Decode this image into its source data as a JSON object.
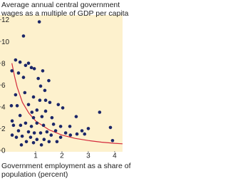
{
  "chart_data": {
    "type": "scatter",
    "title": "Average annual central government wages as a multiple of GDP per capita",
    "x_label": "Government employment as a share of population (percent)",
    "color": "#1b2668",
    "background": "#fdf1cd",
    "x": [
      1.14,
      0.54,
      0.24,
      0.41,
      0.62,
      0.73,
      0.84,
      0.95,
      0.1,
      0.35,
      1.27,
      0.54,
      1.1,
      1.5,
      1.19,
      1.35,
      0.24,
      0.92,
      1.16,
      1.38,
      1.54,
      1.86,
      2.03,
      0.08,
      0.3,
      0.73,
      1.05,
      0.86,
      1.38,
      1.24,
      0.92,
      0.41,
      1.62,
      3.43,
      2.54,
      0.11,
      0.62,
      1.05,
      1.3,
      1.68,
      1.95,
      2.3,
      2.76,
      3.0,
      3.84,
      0.35,
      0.73,
      0.95,
      1.19,
      1.43,
      1.59,
      1.76,
      2.14,
      2.32,
      2.57,
      2.86,
      0.11,
      0.27,
      0.49,
      0.81,
      1.05,
      1.32,
      1.95,
      1.51,
      1.81,
      0.65,
      0.92,
      1.22,
      0.46,
      3.92,
      0.59,
      0.16,
      0.43,
      0.84
    ],
    "y": [
      11.8,
      10.5,
      8.3,
      8.1,
      7.8,
      8.0,
      7.6,
      7.5,
      7.3,
      7.1,
      7.3,
      6.7,
      6.6,
      6.4,
      5.9,
      5.5,
      5.1,
      4.9,
      4.6,
      4.6,
      4.4,
      4.2,
      3.9,
      4.1,
      4.1,
      4.2,
      3.7,
      3.5,
      3.6,
      3.1,
      3.0,
      3.2,
      3.0,
      3.5,
      3.1,
      2.7,
      2.5,
      2.5,
      2.3,
      2.4,
      2.2,
      2.2,
      1.8,
      2.0,
      2.1,
      1.8,
      1.7,
      1.6,
      1.6,
      1.7,
      1.4,
      1.8,
      1.6,
      1.4,
      1.5,
      1.5,
      1.4,
      1.2,
      1.3,
      1.2,
      1.0,
      1.0,
      1.2,
      0.8,
      0.8,
      0.8,
      0.7,
      0.5,
      0.5,
      0.9,
      5.3,
      2.3,
      2.3,
      2.2
    ],
    "curve_color": "#d42a3c",
    "curve_x": [
      0.1,
      0.2,
      0.3,
      0.5,
      0.75,
      1,
      1.5,
      2,
      2.5,
      3,
      3.5,
      4,
      4.3
    ],
    "curve_y": [
      8,
      6.8,
      5.8,
      4.4,
      3.4,
      2.7,
      1.9,
      1.4,
      1.1,
      0.9,
      0.75,
      0.65,
      0.6
    ],
    "xlim": [
      0,
      4.3
    ],
    "ylim": [
      0,
      12.3
    ],
    "xticks": [
      1,
      2,
      3,
      4
    ],
    "yticks": [
      0,
      2,
      4,
      6,
      8,
      10,
      12
    ]
  }
}
